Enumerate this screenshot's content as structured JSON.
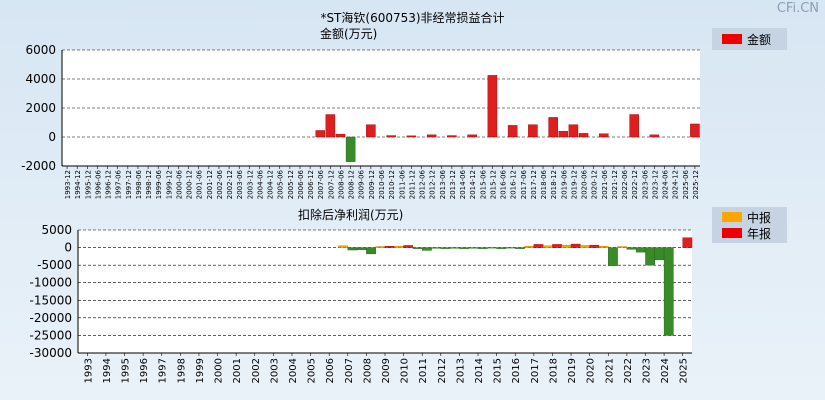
{
  "brand": "CFi.CN",
  "top": {
    "title": "*ST海钦(600753)非经常损益合计",
    "unit": "金额(万元)",
    "legend": "金额",
    "legend_color": "#ee0000",
    "chart_data": {
      "type": "bar",
      "ylim": [
        -2000,
        6000
      ],
      "yticks": [
        -2000,
        0,
        2000,
        4000,
        6000
      ],
      "categories": [
        "1993-12",
        "1994-12",
        "1995-12",
        "1996-06",
        "1996-12",
        "1997-06",
        "1997-12",
        "1998-06",
        "1998-12",
        "1999-06",
        "1999-12",
        "2000-06",
        "2000-12",
        "2001-06",
        "2001-12",
        "2002-06",
        "2002-12",
        "2003-06",
        "2003-12",
        "2004-06",
        "2004-12",
        "2005-06",
        "2005-12",
        "2006-06",
        "2006-12",
        "2007-06",
        "2007-12",
        "2008-06",
        "2008-12",
        "2009-06",
        "2009-12",
        "2010-06",
        "2010-12",
        "2011-06",
        "2011-12",
        "2012-06",
        "2012-12",
        "2013-06",
        "2013-12",
        "2014-06",
        "2014-12",
        "2015-06",
        "2015-12",
        "2016-06",
        "2016-12",
        "2017-06",
        "2017-12",
        "2018-06",
        "2018-12",
        "2019-06",
        "2019-12",
        "2020-06",
        "2020-12",
        "2021-06",
        "2021-12",
        "2022-06",
        "2022-12",
        "2023-06",
        "2023-12",
        "2024-06",
        "2024-12",
        "2025-06",
        "2025-12"
      ],
      "values": [
        0,
        0,
        0,
        0,
        0,
        0,
        0,
        0,
        0,
        0,
        0,
        0,
        0,
        0,
        0,
        0,
        0,
        0,
        0,
        0,
        0,
        0,
        0,
        0,
        0,
        450,
        1550,
        200,
        -1700,
        0,
        850,
        0,
        100,
        0,
        80,
        0,
        150,
        0,
        100,
        0,
        150,
        0,
        4250,
        0,
        800,
        0,
        850,
        0,
        1350,
        400,
        850,
        250,
        0,
        230,
        0,
        0,
        1550,
        0,
        150,
        0,
        0,
        0,
        900
      ]
    }
  },
  "bottom": {
    "title": "扣除后净利润(万元)",
    "legend": [
      {
        "label": "中报",
        "color": "#ffa500"
      },
      {
        "label": "年报",
        "color": "#ee0000"
      }
    ],
    "chart_data": {
      "type": "bar",
      "ylim": [
        -30000,
        5000
      ],
      "yticks": [
        5000,
        0,
        -5000,
        -10000,
        -15000,
        -20000,
        -25000,
        -30000
      ],
      "categories": [
        "1993",
        "1994",
        "1995",
        "1996",
        "1997",
        "1998",
        "1999",
        "2000",
        "2001",
        "2002",
        "2003",
        "2004",
        "2005",
        "2006",
        "2007",
        "2008",
        "2009",
        "2010",
        "2011",
        "2012",
        "2013",
        "2014",
        "2015",
        "2016",
        "2017",
        "2018",
        "2019",
        "2020",
        "2021",
        "2022",
        "2023",
        "2024",
        "2025"
      ],
      "series": [
        {
          "name": "中报",
          "values": [
            0,
            0,
            0,
            0,
            0,
            0,
            0,
            0,
            0,
            0,
            0,
            0,
            0,
            0,
            500,
            -600,
            300,
            400,
            -300,
            -200,
            -200,
            -200,
            -150,
            -150,
            400,
            500,
            700,
            600,
            400,
            300,
            -1300,
            -3500,
            0
          ]
        },
        {
          "name": "年报",
          "values": [
            0,
            0,
            0,
            0,
            0,
            0,
            0,
            0,
            0,
            0,
            0,
            0,
            0,
            0,
            -700,
            -1800,
            400,
            600,
            -800,
            -300,
            -300,
            -300,
            -300,
            -300,
            900,
            900,
            1000,
            700,
            -5200,
            -500,
            -5000,
            -25000,
            2800
          ]
        }
      ]
    }
  }
}
